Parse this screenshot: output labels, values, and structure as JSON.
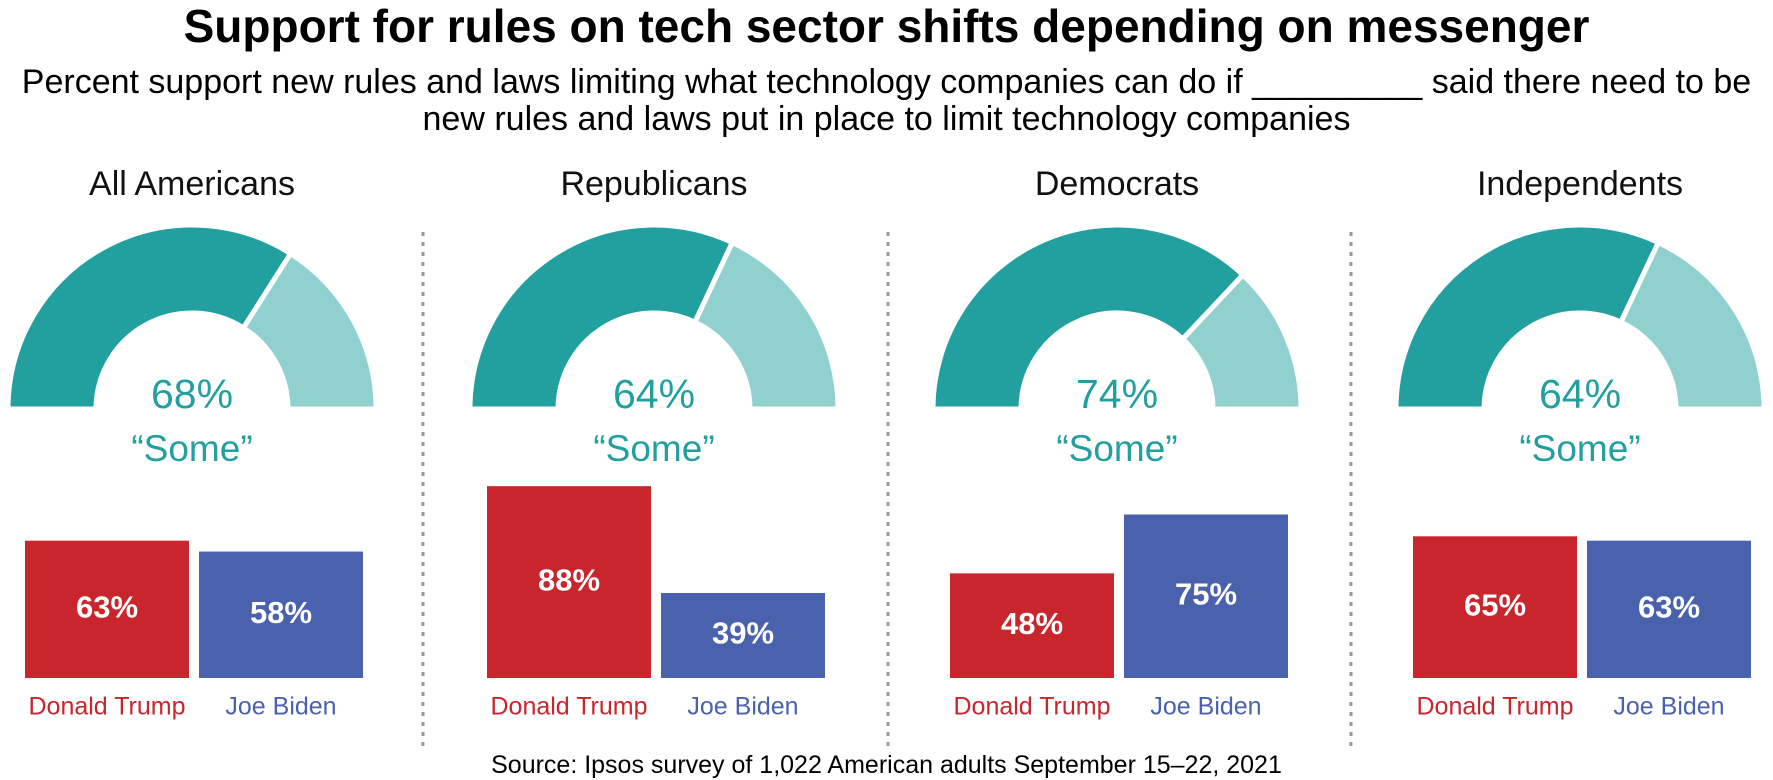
{
  "title": "Support for rules on tech sector shifts depending on messenger",
  "subtitle": "Percent support new rules and laws limiting what technology companies can do if _________ said there need to be new rules and laws put in place to limit technology companies",
  "source": "Source: Ipsos survey of 1,022 American adults September 15–22, 2021",
  "chart_data": [
    {
      "type": "gauge",
      "title": "All Americans",
      "value": 68,
      "value_label": "68%",
      "label": "“Some”",
      "color": "#21a09f",
      "rest_color": "#90d1cf"
    },
    {
      "type": "bar",
      "categories": [
        "Donald Trump",
        "Joe Biden"
      ],
      "values": [
        63,
        58
      ],
      "value_labels": [
        "63%",
        "58%"
      ],
      "colors": [
        "#c9252c",
        "#4a62ad"
      ]
    },
    {
      "type": "gauge",
      "title": "Republicans",
      "value": 64,
      "value_label": "64%",
      "label": "“Some”",
      "color": "#21a09f",
      "rest_color": "#90d1cf"
    },
    {
      "type": "bar",
      "categories": [
        "Donald Trump",
        "Joe Biden"
      ],
      "values": [
        88,
        39
      ],
      "value_labels": [
        "88%",
        "39%"
      ],
      "colors": [
        "#c9252c",
        "#4a62ad"
      ]
    },
    {
      "type": "gauge",
      "title": "Democrats",
      "value": 74,
      "value_label": "74%",
      "label": "“Some”",
      "color": "#21a09f",
      "rest_color": "#90d1cf"
    },
    {
      "type": "bar",
      "categories": [
        "Donald Trump",
        "Joe Biden"
      ],
      "values": [
        48,
        75
      ],
      "value_labels": [
        "48%",
        "75%"
      ],
      "colors": [
        "#c9252c",
        "#4a62ad"
      ]
    },
    {
      "type": "gauge",
      "title": "Independents",
      "value": 64,
      "value_label": "64%",
      "label": "“Some”",
      "color": "#21a09f",
      "rest_color": "#90d1cf"
    },
    {
      "type": "bar",
      "categories": [
        "Donald Trump",
        "Joe Biden"
      ],
      "values": [
        65,
        63
      ],
      "value_labels": [
        "65%",
        "63%"
      ],
      "colors": [
        "#c9252c",
        "#4a62ad"
      ]
    }
  ]
}
